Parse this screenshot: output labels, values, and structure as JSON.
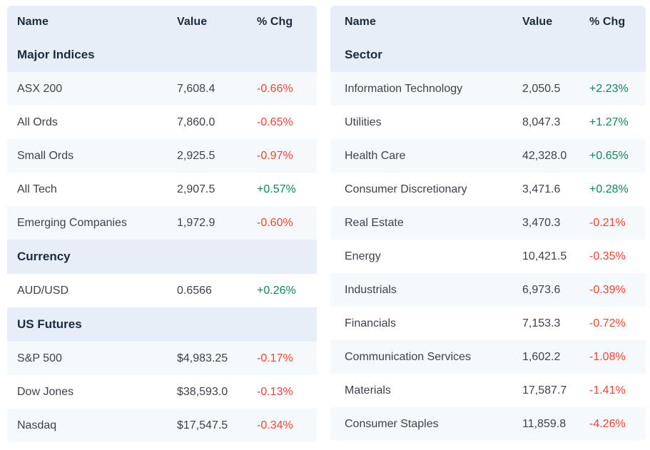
{
  "colors": {
    "header_bg": "#e8eef7",
    "stripe_bg": "#f6f9fc",
    "heading_text": "#1c2b3e",
    "row_text": "#3d424c",
    "positive": "#11865b",
    "negative": "#ef4434"
  },
  "tables": [
    {
      "id": "indices",
      "columns": [
        "Name",
        "Value",
        "% Chg"
      ],
      "rows": [
        {
          "type": "section",
          "label": "Major Indices"
        },
        {
          "type": "data",
          "name": "ASX 200",
          "value": "7,608.4",
          "chg": "-0.66%",
          "dir": "neg"
        },
        {
          "type": "data",
          "name": "All Ords",
          "value": "7,860.0",
          "chg": "-0.65%",
          "dir": "neg"
        },
        {
          "type": "data",
          "name": "Small Ords",
          "value": "2,925.5",
          "chg": "-0.97%",
          "dir": "neg"
        },
        {
          "type": "data",
          "name": "All Tech",
          "value": "2,907.5",
          "chg": "+0.57%",
          "dir": "pos"
        },
        {
          "type": "data",
          "name": "Emerging Companies",
          "value": "1,972.9",
          "chg": "-0.60%",
          "dir": "neg"
        },
        {
          "type": "section",
          "label": "Currency"
        },
        {
          "type": "data",
          "name": "AUD/USD",
          "value": "0.6566",
          "chg": "+0.26%",
          "dir": "pos"
        },
        {
          "type": "section",
          "label": "US Futures"
        },
        {
          "type": "data",
          "name": "S&P 500",
          "value": "$4,983.25",
          "chg": "-0.17%",
          "dir": "neg"
        },
        {
          "type": "data",
          "name": "Dow Jones",
          "value": "$38,593.0",
          "chg": "-0.13%",
          "dir": "neg"
        },
        {
          "type": "data",
          "name": "Nasdaq",
          "value": "$17,547.5",
          "chg": "-0.34%",
          "dir": "neg"
        }
      ]
    },
    {
      "id": "sectors",
      "columns": [
        "Name",
        "Value",
        "% Chg"
      ],
      "rows": [
        {
          "type": "section",
          "label": "Sector"
        },
        {
          "type": "data",
          "name": "Information Technology",
          "value": "2,050.5",
          "chg": "+2.23%",
          "dir": "pos"
        },
        {
          "type": "data",
          "name": "Utilities",
          "value": "8,047.3",
          "chg": "+1.27%",
          "dir": "pos"
        },
        {
          "type": "data",
          "name": "Health Care",
          "value": "42,328.0",
          "chg": "+0.65%",
          "dir": "pos"
        },
        {
          "type": "data",
          "name": "Consumer Discretionary",
          "value": "3,471.6",
          "chg": "+0.28%",
          "dir": "pos"
        },
        {
          "type": "data",
          "name": "Real Estate",
          "value": "3,470.3",
          "chg": "-0.21%",
          "dir": "neg"
        },
        {
          "type": "data",
          "name": "Energy",
          "value": "10,421.5",
          "chg": "-0.35%",
          "dir": "neg"
        },
        {
          "type": "data",
          "name": "Industrials",
          "value": "6,973.6",
          "chg": "-0.39%",
          "dir": "neg"
        },
        {
          "type": "data",
          "name": "Financials",
          "value": "7,153.3",
          "chg": "-0.72%",
          "dir": "neg"
        },
        {
          "type": "data",
          "name": "Communication Services",
          "value": "1,602.2",
          "chg": "-1.08%",
          "dir": "neg"
        },
        {
          "type": "data",
          "name": "Materials",
          "value": "17,587.7",
          "chg": "-1.41%",
          "dir": "neg"
        },
        {
          "type": "data",
          "name": "Consumer Staples",
          "value": "11,859.8",
          "chg": "-4.26%",
          "dir": "neg"
        }
      ]
    }
  ]
}
